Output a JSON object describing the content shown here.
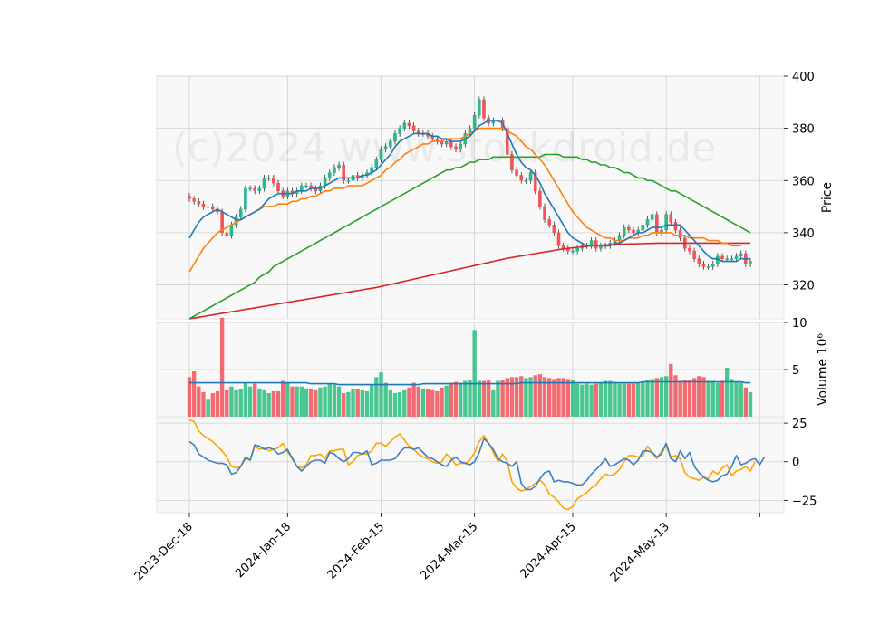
{
  "watermark": "(c)2024 www.stockdroid.de",
  "chart_data": {
    "type": "candlestick",
    "x_tick_labels": [
      "2023-Dec-18",
      "2024-Jan-18",
      "2024-Feb-15",
      "2024-Mar-15",
      "2024-Apr-15",
      "2024-May-13"
    ],
    "x_tick_index": [
      0,
      21,
      41,
      61,
      82,
      102
    ],
    "price_panel": {
      "ylabel": "Price",
      "ylim": [
        307,
        400
      ],
      "yticks": [
        320,
        340,
        360,
        380,
        400
      ],
      "close": [
        353,
        352,
        351,
        350,
        350,
        349,
        348,
        340,
        339,
        343,
        346,
        349,
        357,
        357,
        356,
        357,
        361,
        361,
        359,
        356,
        354,
        356,
        355,
        356,
        358,
        358,
        357,
        356,
        358,
        361,
        363,
        365,
        366,
        360,
        360,
        362,
        361,
        362,
        363,
        365,
        368,
        372,
        373,
        375,
        378,
        380,
        382,
        381,
        379,
        378,
        378,
        377,
        376,
        375,
        374,
        375,
        373,
        372,
        374,
        378,
        380,
        385,
        391,
        384,
        382,
        383,
        383,
        380,
        370,
        364,
        362,
        360,
        360,
        363,
        356,
        350,
        345,
        343,
        340,
        335,
        334,
        333,
        333,
        334,
        335,
        335,
        337,
        334,
        335,
        335,
        336,
        337,
        339,
        342,
        341,
        340,
        341,
        343,
        345,
        347,
        340,
        341,
        347,
        344,
        341,
        338,
        334,
        333,
        330,
        328,
        327,
        327,
        328,
        331,
        330,
        330,
        330,
        331,
        332,
        328,
        329
      ],
      "ma_short_name": "",
      "ma_short": [
        338,
        341,
        344,
        346,
        347,
        348,
        349,
        348,
        347,
        346,
        345,
        345,
        346,
        347,
        348,
        349,
        351,
        353,
        354,
        355,
        355,
        355,
        355,
        356,
        356,
        356,
        357,
        357,
        357,
        358,
        359,
        360,
        361,
        361,
        361,
        361,
        361,
        362,
        362,
        363,
        364,
        366,
        368,
        370,
        373,
        375,
        376,
        377,
        378,
        378,
        378,
        378,
        377,
        377,
        376,
        376,
        375,
        375,
        375,
        376,
        377,
        379,
        381,
        382,
        383,
        383,
        383,
        382,
        378,
        374,
        370,
        367,
        365,
        364,
        362,
        359,
        355,
        352,
        349,
        346,
        343,
        340,
        338,
        337,
        336,
        335,
        335,
        335,
        335,
        335,
        335,
        336,
        336,
        337,
        338,
        339,
        340,
        340,
        341,
        342,
        342,
        342,
        343,
        343,
        343,
        343,
        341,
        339,
        337,
        335,
        333,
        331,
        330,
        330,
        329,
        329,
        329,
        329,
        330,
        330,
        330
      ],
      "ma_mid_name": "",
      "ma_mid": [
        325,
        328,
        331,
        334,
        336,
        338,
        340,
        341,
        342,
        343,
        344,
        345,
        346,
        347,
        348,
        349,
        350,
        350,
        350,
        351,
        351,
        351,
        352,
        352,
        353,
        353,
        354,
        354,
        355,
        356,
        356,
        357,
        357,
        357,
        358,
        358,
        358,
        358,
        359,
        360,
        361,
        362,
        364,
        365,
        367,
        368,
        370,
        371,
        372,
        373,
        374,
        374,
        375,
        375,
        375,
        376,
        376,
        376,
        376,
        377,
        378,
        379,
        380,
        380,
        380,
        380,
        380,
        380,
        379,
        378,
        377,
        375,
        373,
        372,
        370,
        368,
        366,
        363,
        360,
        357,
        354,
        351,
        348,
        346,
        344,
        342,
        341,
        340,
        339,
        338,
        338,
        337,
        337,
        337,
        338,
        338,
        338,
        339,
        339,
        340,
        340,
        340,
        340,
        340,
        339,
        339,
        339,
        338,
        338,
        338,
        338,
        337,
        337,
        337,
        336,
        336,
        335,
        335,
        335
      ],
      "ma_long_name": "",
      "ma_long": [
        307,
        308,
        309,
        310,
        311,
        312,
        313,
        314,
        315,
        316,
        317,
        318,
        319,
        320,
        321,
        323,
        324,
        325,
        327,
        328,
        329,
        330,
        331,
        332,
        333,
        334,
        335,
        336,
        337,
        338,
        339,
        340,
        341,
        342,
        343,
        344,
        345,
        346,
        347,
        348,
        349,
        350,
        351,
        352,
        353,
        354,
        355,
        356,
        357,
        358,
        359,
        360,
        361,
        362,
        363,
        364,
        364,
        365,
        365,
        366,
        367,
        367,
        368,
        368,
        368,
        369,
        369,
        369,
        369,
        369,
        369,
        369,
        369,
        369,
        369,
        369,
        370,
        370,
        370,
        370,
        369,
        369,
        369,
        369,
        368,
        368,
        367,
        367,
        366,
        366,
        365,
        365,
        364,
        363,
        363,
        362,
        361,
        361,
        360,
        360,
        359,
        358,
        357,
        356,
        356,
        355,
        354,
        353,
        352,
        351,
        350,
        349,
        348,
        347,
        346,
        345,
        344,
        343,
        342,
        341,
        340
      ],
      "ma_200_name": "",
      "ma_200": [
        307,
        307.3,
        307.6,
        307.9,
        308.2,
        308.5,
        308.8,
        309.1,
        309.4,
        309.7,
        310,
        310.3,
        310.6,
        310.9,
        311.2,
        311.5,
        311.8,
        312.1,
        312.4,
        312.7,
        313,
        313.3,
        313.6,
        313.9,
        314.2,
        314.5,
        314.8,
        315.1,
        315.4,
        315.7,
        316,
        316.3,
        316.6,
        316.9,
        317.2,
        317.5,
        317.8,
        318.1,
        318.4,
        318.7,
        319,
        319.4,
        319.8,
        320.2,
        320.6,
        321,
        321.4,
        321.8,
        322.2,
        322.6,
        323,
        323.4,
        323.8,
        324.2,
        324.6,
        325,
        325.4,
        325.8,
        326.2,
        326.6,
        327,
        327.4,
        327.8,
        328.2,
        328.6,
        329,
        329.4,
        329.8,
        330.2,
        330.5,
        330.8,
        331.1,
        331.4,
        331.7,
        332,
        332.3,
        332.6,
        332.9,
        333.2,
        333.5,
        333.8,
        334,
        334.2,
        334.4,
        334.6,
        334.8,
        335,
        335.1,
        335.2,
        335.3,
        335.4,
        335.5,
        335.6,
        335.6,
        335.7,
        335.7,
        335.8,
        335.8,
        335.9,
        335.9,
        336,
        336,
        336,
        336,
        336,
        336,
        336,
        336,
        336,
        336,
        336,
        336,
        336,
        336,
        336,
        336,
        336,
        336,
        336,
        336,
        336
      ]
    },
    "volume_panel": {
      "ylabel": "Volume  10⁶",
      "ylim": [
        0,
        10
      ],
      "yticks": [
        5,
        10
      ],
      "volume": [
        4.2,
        4.8,
        3.2,
        2.6,
        1.8,
        2.5,
        2.7,
        10.5,
        2.8,
        3.2,
        2.8,
        2.9,
        3.6,
        3.2,
        3.5,
        3,
        2.8,
        2.5,
        2.7,
        2.7,
        3.8,
        3.6,
        3.2,
        3.2,
        3.2,
        3,
        2.9,
        2.8,
        3.1,
        3.2,
        3.5,
        3.4,
        3.2,
        2.5,
        2.6,
        2.9,
        2.9,
        2.8,
        2.7,
        3.4,
        4.2,
        4.7,
        3.6,
        2.8,
        2.5,
        2.6,
        2.8,
        3.1,
        3.6,
        3.2,
        3,
        2.9,
        2.8,
        2.7,
        3.1,
        3.3,
        3.6,
        3.7,
        3.6,
        3.8,
        3.9,
        9.2,
        3.8,
        3.8,
        3.9,
        2.8,
        3.8,
        3.9,
        4.1,
        4.2,
        4.2,
        4.3,
        4.1,
        4.2,
        4.4,
        4.5,
        4.2,
        4.1,
        4,
        4.1,
        4.1,
        4,
        3.9,
        3.5,
        3.4,
        3.5,
        3.4,
        3.5,
        3.6,
        3.8,
        3.8,
        3.7,
        3.5,
        3.5,
        3.5,
        3.5,
        3.6,
        3.7,
        3.9,
        4,
        4.1,
        4.2,
        4.3,
        5.6,
        4.4,
        3.8,
        3.9,
        3.9,
        4.1,
        4.3,
        4.2,
        3.8,
        3.8,
        3.6,
        3.8,
        5.2,
        4,
        3.7,
        3.6,
        3.1,
        2.6
      ],
      "avg_name": "",
      "avg": [
        3.6,
        3.6,
        3.6,
        3.6,
        3.6,
        3.6,
        3.6,
        3.6,
        3.6,
        3.6,
        3.6,
        3.6,
        3.6,
        3.6,
        3.6,
        3.6,
        3.6,
        3.6,
        3.6,
        3.6,
        3.6,
        3.6,
        3.6,
        3.6,
        3.6,
        3.6,
        3.5,
        3.5,
        3.5,
        3.5,
        3.5,
        3.5,
        3.4,
        3.4,
        3.4,
        3.4,
        3.4,
        3.4,
        3.4,
        3.4,
        3.4,
        3.4,
        3.4,
        3.4,
        3.4,
        3.4,
        3.4,
        3.4,
        3.4,
        3.4,
        3.5,
        3.5,
        3.5,
        3.5,
        3.5,
        3.5,
        3.5,
        3.5,
        3.5,
        3.5,
        3.5,
        3.5,
        3.5,
        3.5,
        3.5,
        3.5,
        3.5,
        3.5,
        3.5,
        3.5,
        3.5,
        3.6,
        3.6,
        3.6,
        3.6,
        3.6,
        3.6,
        3.6,
        3.6,
        3.6,
        3.6,
        3.6,
        3.6,
        3.6,
        3.6,
        3.6,
        3.6,
        3.6,
        3.6,
        3.6,
        3.6,
        3.6,
        3.6,
        3.6,
        3.6,
        3.6,
        3.6,
        3.7,
        3.7,
        3.7,
        3.7,
        3.7,
        3.7,
        3.7,
        3.7,
        3.7,
        3.7,
        3.7,
        3.7,
        3.7,
        3.7,
        3.7,
        3.7,
        3.7,
        3.7,
        3.7,
        3.7,
        3.7,
        3.7,
        3.6,
        3.6
      ]
    },
    "indicator_panel": {
      "ylim": [
        -33,
        28
      ],
      "yticks": [
        25,
        0,
        -25
      ],
      "ytick_labels": [
        "25",
        "0",
        "−25"
      ],
      "line_a_name": "",
      "line_a": [
        13,
        11,
        5,
        3,
        1,
        0,
        -1,
        -1,
        -2,
        -8,
        -7,
        -3,
        3,
        1,
        11,
        10,
        8,
        9,
        8,
        5,
        6,
        8,
        2,
        -3,
        -6,
        -3,
        0,
        1,
        1,
        -1,
        6,
        5,
        2,
        0,
        2,
        6,
        6,
        5,
        7,
        -2,
        -1,
        1,
        1,
        1,
        2,
        6,
        9,
        9,
        8,
        9,
        6,
        3,
        2,
        0,
        -2,
        -3,
        1,
        3,
        0,
        -1,
        -2,
        0,
        6,
        15,
        12,
        8,
        2,
        0,
        -1,
        -3,
        0,
        -14,
        -18,
        -18,
        -16,
        -11,
        -7,
        -6,
        -13,
        -12,
        -13,
        -13,
        -14,
        -15,
        -15,
        -12,
        -8,
        -5,
        -2,
        2,
        -3,
        -2,
        0,
        2,
        1,
        -2,
        1,
        7,
        7,
        6,
        3,
        5,
        12,
        2,
        0,
        7,
        2,
        6,
        -3,
        -7,
        -10,
        -12,
        -13,
        -12,
        -9,
        -8,
        -3,
        4,
        -2,
        -1,
        1,
        2,
        -2,
        3
      ],
      "line_b_name": "",
      "line_b": [
        27,
        26,
        20,
        17,
        15,
        13,
        10,
        7,
        3,
        -3,
        -4,
        -3,
        2,
        1,
        10,
        8,
        9,
        7,
        8,
        9,
        12,
        6,
        3,
        -3,
        -4,
        -2,
        4,
        4,
        5,
        2,
        7,
        7,
        8,
        8,
        -2,
        0,
        4,
        5,
        5,
        7,
        12,
        12,
        10,
        13,
        16,
        18,
        14,
        10,
        8,
        5,
        3,
        2,
        0,
        -1,
        0,
        5,
        2,
        -2,
        -1,
        -1,
        1,
        6,
        13,
        17,
        12,
        6,
        0,
        5,
        0,
        -13,
        -17,
        -19,
        -18,
        -16,
        -14,
        -12,
        -15,
        -21,
        -23,
        -26,
        -30,
        -31,
        -29,
        -24,
        -22,
        -20,
        -17,
        -15,
        -11,
        -8,
        -9,
        -8,
        -5,
        0,
        4,
        4,
        3,
        4,
        10,
        6,
        2,
        7,
        10,
        3,
        4,
        2,
        -7,
        -10,
        -11,
        -12,
        -10,
        -11,
        -6,
        -8,
        -4,
        -2,
        -9,
        -6,
        -5,
        -3,
        -6,
        0
      ]
    }
  }
}
